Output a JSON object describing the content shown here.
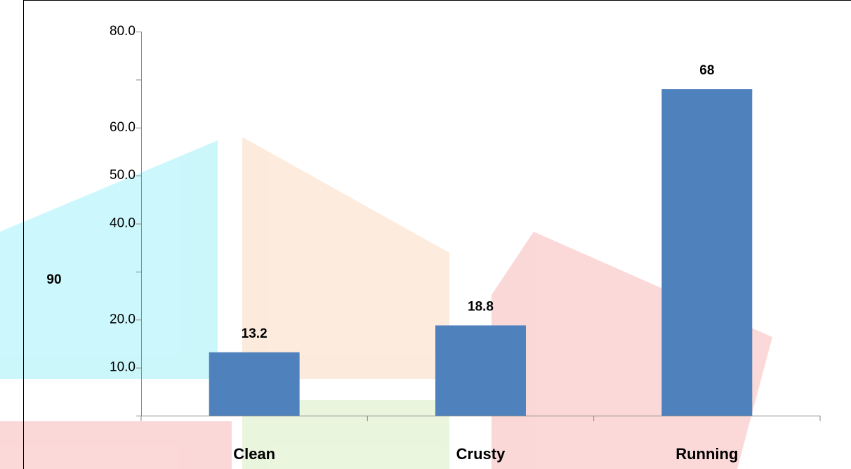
{
  "chart_data": {
    "type": "bar",
    "categories": [
      "Clean",
      "Crusty",
      "Running"
    ],
    "values": [
      13.2,
      18.8,
      68
    ],
    "color": "#4f81bd",
    "ylim": [
      0,
      80
    ],
    "yticks": [
      {
        "value": 0,
        "label": null
      },
      {
        "value": 10,
        "label": "10.0"
      },
      {
        "value": 20,
        "label": "20.0"
      },
      {
        "value": 30,
        "label": null
      },
      {
        "value": 40,
        "label": "40.0"
      },
      {
        "value": 50,
        "label": "50.0"
      },
      {
        "value": 60,
        "label": "60.0"
      },
      {
        "value": 70,
        "label": null
      },
      {
        "value": 80,
        "label": "80.0"
      }
    ],
    "annotation": "90"
  }
}
